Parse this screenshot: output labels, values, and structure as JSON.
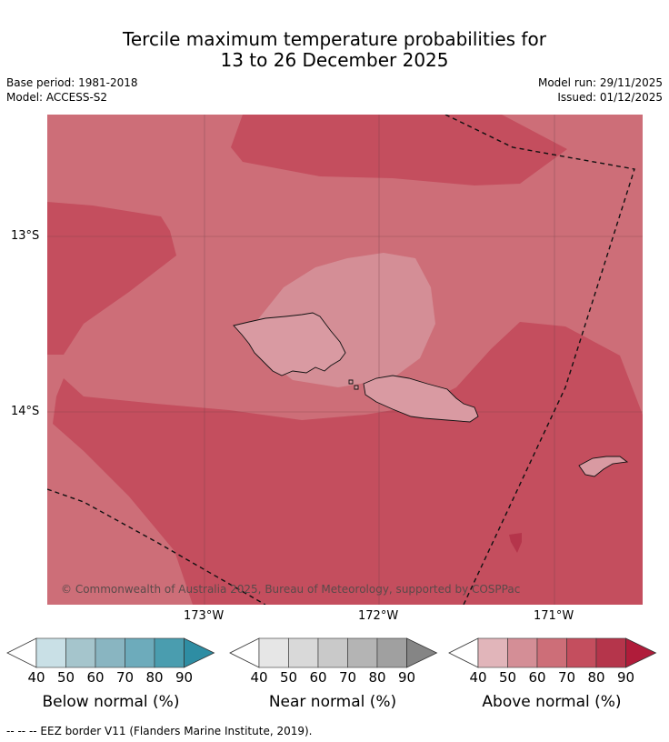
{
  "title": {
    "line1": "Tercile maximum temperature probabilities for",
    "line2": "13 to 26 December 2025"
  },
  "meta": {
    "base_period": "Base period: 1981-2018",
    "model": "Model: ACCESS-S2",
    "model_run": "Model run: 29/11/2025",
    "issued": "Issued: 01/12/2025"
  },
  "map": {
    "lat_labels": [
      "13°S",
      "14°S"
    ],
    "lon_labels": [
      "173°W",
      "172°W",
      "171°W"
    ],
    "copyright": "© Commonwealth of Australia 2025, Bureau of Meteorology, supported by COSPPac"
  },
  "legend": {
    "ticks": [
      "40",
      "50",
      "60",
      "70",
      "80",
      "90"
    ],
    "below": {
      "label": "Below normal (%)",
      "colors": [
        "#ffffff",
        "#c9e0e6",
        "#a5c5cc",
        "#89b5c1",
        "#6dabbb",
        "#4a9daf",
        "#2e8da3"
      ]
    },
    "near": {
      "label": "Near normal (%)",
      "colors": [
        "#ffffff",
        "#e6e6e6",
        "#d9d9d9",
        "#c9c9c9",
        "#b4b4b4",
        "#a0a0a0",
        "#858585"
      ]
    },
    "above": {
      "label": "Above normal (%)",
      "colors": [
        "#ffffff",
        "#e1b5ba",
        "#d48e96",
        "#cd6e78",
        "#c44e5e",
        "#b5354b",
        "#b01c3a"
      ]
    }
  },
  "footer": "--  --  -- EEZ border V11 (Flanders Marine Institute, 2019)."
}
